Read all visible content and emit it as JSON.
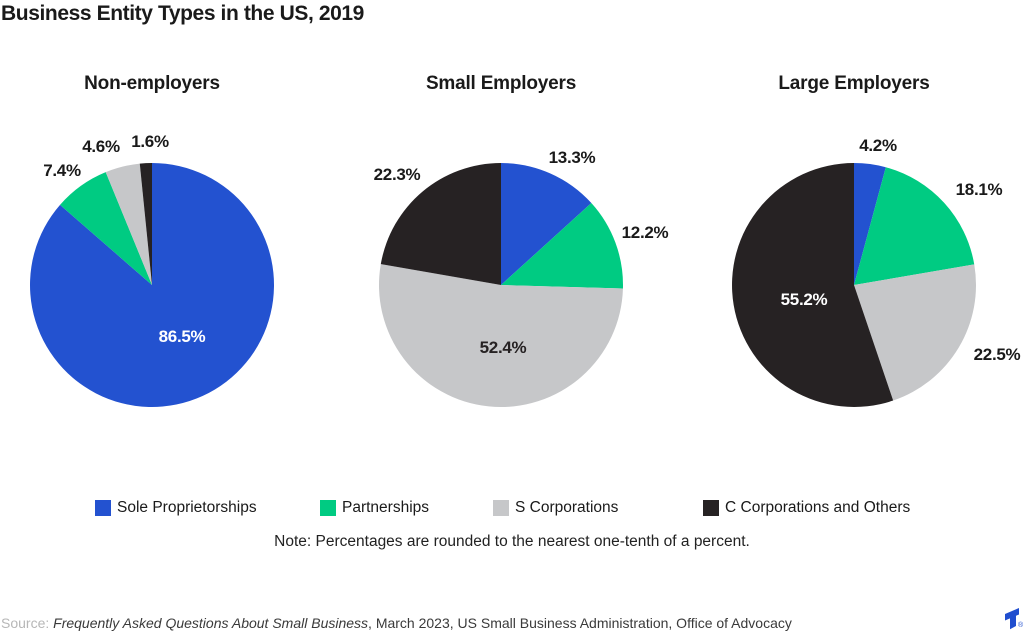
{
  "title": "Business Entity Types in the US, 2019",
  "chart_data": [
    {
      "type": "pie",
      "title": "Non-employers",
      "categories": [
        "Sole Proprietorships",
        "Partnerships",
        "S Corporations",
        "C Corporations and Others"
      ],
      "values": [
        86.5,
        7.4,
        4.6,
        1.6
      ],
      "colors": [
        "#2352D0",
        "#00CB82",
        "#C6C7C9",
        "#262223"
      ],
      "unit": "%",
      "start_angle": "12 o'clock, clockwise"
    },
    {
      "type": "pie",
      "title": "Small Employers",
      "categories": [
        "Sole Proprietorships",
        "Partnerships",
        "S Corporations",
        "C Corporations and Others"
      ],
      "values": [
        13.3,
        12.2,
        52.4,
        22.3
      ],
      "colors": [
        "#2352D0",
        "#00CB82",
        "#C6C7C9",
        "#262223"
      ],
      "unit": "%",
      "start_angle": "12 o'clock, clockwise"
    },
    {
      "type": "pie",
      "title": "Large Employers",
      "categories": [
        "Sole Proprietorships",
        "Partnerships",
        "S Corporations",
        "C Corporations and Others"
      ],
      "values": [
        4.2,
        18.1,
        22.5,
        55.2
      ],
      "colors": [
        "#2352D0",
        "#00CB82",
        "#C6C7C9",
        "#262223"
      ],
      "unit": "%",
      "start_angle": "12 o'clock, clockwise"
    }
  ],
  "legend": {
    "items": [
      {
        "label": "Sole Proprietorships",
        "color": "#2352D0"
      },
      {
        "label": "Partnerships",
        "color": "#00CB82"
      },
      {
        "label": "S Corporations",
        "color": "#C6C7C9"
      },
      {
        "label": "C Corporations and Others",
        "color": "#262223"
      }
    ]
  },
  "note": "Note: Percentages are rounded to the nearest one-tenth of a percent.",
  "source": {
    "prefix": "Source: ",
    "work": "Frequently Asked Questions About Small Business",
    "rest": ", March 2023, US Small Business Administration, Office of Advocacy"
  },
  "logo": {
    "name": "toptal-logo",
    "color": "#204ECF",
    "registered": "®"
  }
}
